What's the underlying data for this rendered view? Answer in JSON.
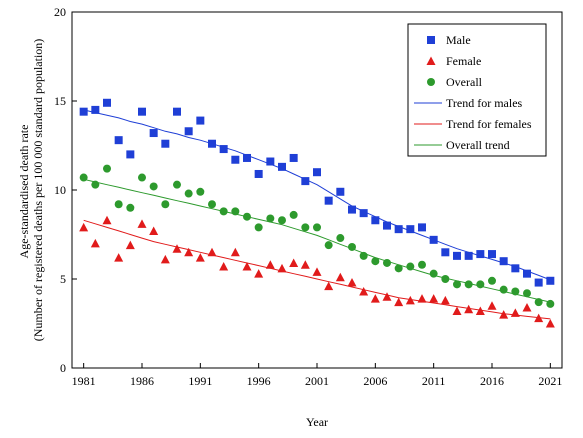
{
  "chart_data": {
    "type": "scatter",
    "title": "",
    "xlabel": "Year",
    "ylabel_lines": [
      "Age-standardised death rate",
      "(Number of registered deaths per 100 000 standard population)"
    ],
    "xlim": [
      1980,
      2022
    ],
    "ylim": [
      0,
      20
    ],
    "x_ticks": [
      1981,
      1986,
      1991,
      1996,
      2001,
      2006,
      2011,
      2016,
      2021
    ],
    "y_ticks": [
      0,
      5,
      10,
      15,
      20
    ],
    "grid": false,
    "legend_position": "top-right",
    "x": [
      1981,
      1982,
      1983,
      1984,
      1985,
      1986,
      1987,
      1988,
      1989,
      1990,
      1991,
      1992,
      1993,
      1994,
      1995,
      1996,
      1997,
      1998,
      1999,
      2000,
      2001,
      2002,
      2003,
      2004,
      2005,
      2006,
      2007,
      2008,
      2009,
      2010,
      2011,
      2012,
      2013,
      2014,
      2015,
      2016,
      2017,
      2018,
      2019,
      2020,
      2021
    ],
    "series": [
      {
        "name": "Male",
        "kind": "points",
        "marker": "square",
        "color": "#1f3fd6",
        "values": [
          14.4,
          14.5,
          14.9,
          12.8,
          12.0,
          14.4,
          13.2,
          12.6,
          14.4,
          13.3,
          13.9,
          12.6,
          12.3,
          11.7,
          11.8,
          10.9,
          11.6,
          11.3,
          11.8,
          10.5,
          11.0,
          9.4,
          9.9,
          8.9,
          8.7,
          8.3,
          8.0,
          7.8,
          7.8,
          7.9,
          7.2,
          6.5,
          6.3,
          6.3,
          6.4,
          6.4,
          6.0,
          5.6,
          5.3,
          4.8,
          4.9
        ]
      },
      {
        "name": "Female",
        "kind": "points",
        "marker": "triangle",
        "color": "#e11b1b",
        "values": [
          7.9,
          7.0,
          8.3,
          6.2,
          6.9,
          8.1,
          7.7,
          6.1,
          6.7,
          6.5,
          6.2,
          6.5,
          5.7,
          6.5,
          5.7,
          5.3,
          5.8,
          5.6,
          5.9,
          5.8,
          5.4,
          4.6,
          5.1,
          4.8,
          4.3,
          3.9,
          4.0,
          3.7,
          3.8,
          3.9,
          3.9,
          3.8,
          3.2,
          3.3,
          3.2,
          3.5,
          3.0,
          3.1,
          3.4,
          2.8,
          2.5
        ]
      },
      {
        "name": "Overall",
        "kind": "points",
        "marker": "circle",
        "color": "#2d9a2d",
        "values": [
          10.7,
          10.3,
          11.2,
          9.2,
          9.0,
          10.7,
          10.2,
          9.2,
          10.3,
          9.8,
          9.9,
          9.2,
          8.8,
          8.8,
          8.5,
          7.9,
          8.4,
          8.3,
          8.6,
          7.9,
          7.9,
          6.9,
          7.3,
          6.8,
          6.3,
          6.0,
          5.9,
          5.6,
          5.7,
          5.8,
          5.3,
          5.0,
          4.7,
          4.7,
          4.7,
          4.9,
          4.4,
          4.3,
          4.2,
          3.7,
          3.6
        ]
      },
      {
        "name": "Trend for males",
        "kind": "line",
        "color": "#1f3fd6",
        "values": [
          14.5,
          14.35,
          14.2,
          14.05,
          13.85,
          13.7,
          13.5,
          13.3,
          13.15,
          12.95,
          12.8,
          12.6,
          12.4,
          12.2,
          11.95,
          11.7,
          11.45,
          11.2,
          10.9,
          10.6,
          10.3,
          9.9,
          9.5,
          9.1,
          8.8,
          8.5,
          8.2,
          7.95,
          7.7,
          7.45,
          7.2,
          6.95,
          6.7,
          6.5,
          6.3,
          6.1,
          5.9,
          5.7,
          5.45,
          5.2,
          4.95
        ]
      },
      {
        "name": "Trend for females",
        "kind": "line",
        "color": "#e11b1b",
        "values": [
          8.3,
          8.1,
          7.9,
          7.7,
          7.5,
          7.3,
          7.1,
          6.95,
          6.8,
          6.65,
          6.5,
          6.35,
          6.2,
          6.05,
          5.9,
          5.75,
          5.6,
          5.45,
          5.3,
          5.15,
          5.0,
          4.85,
          4.7,
          4.55,
          4.4,
          4.25,
          4.1,
          3.95,
          3.85,
          3.75,
          3.65,
          3.55,
          3.45,
          3.35,
          3.25,
          3.15,
          3.05,
          2.98,
          2.9,
          2.83,
          2.76
        ]
      },
      {
        "name": "Overall trend",
        "kind": "line",
        "color": "#2d9a2d",
        "values": [
          10.6,
          10.45,
          10.3,
          10.15,
          10.0,
          9.85,
          9.7,
          9.55,
          9.4,
          9.25,
          9.1,
          8.95,
          8.8,
          8.65,
          8.5,
          8.35,
          8.2,
          8.05,
          7.85,
          7.65,
          7.45,
          7.2,
          6.95,
          6.7,
          6.45,
          6.2,
          6.0,
          5.8,
          5.6,
          5.4,
          5.2,
          5.05,
          4.9,
          4.75,
          4.6,
          4.45,
          4.3,
          4.15,
          4.0,
          3.85,
          3.7
        ]
      }
    ]
  }
}
